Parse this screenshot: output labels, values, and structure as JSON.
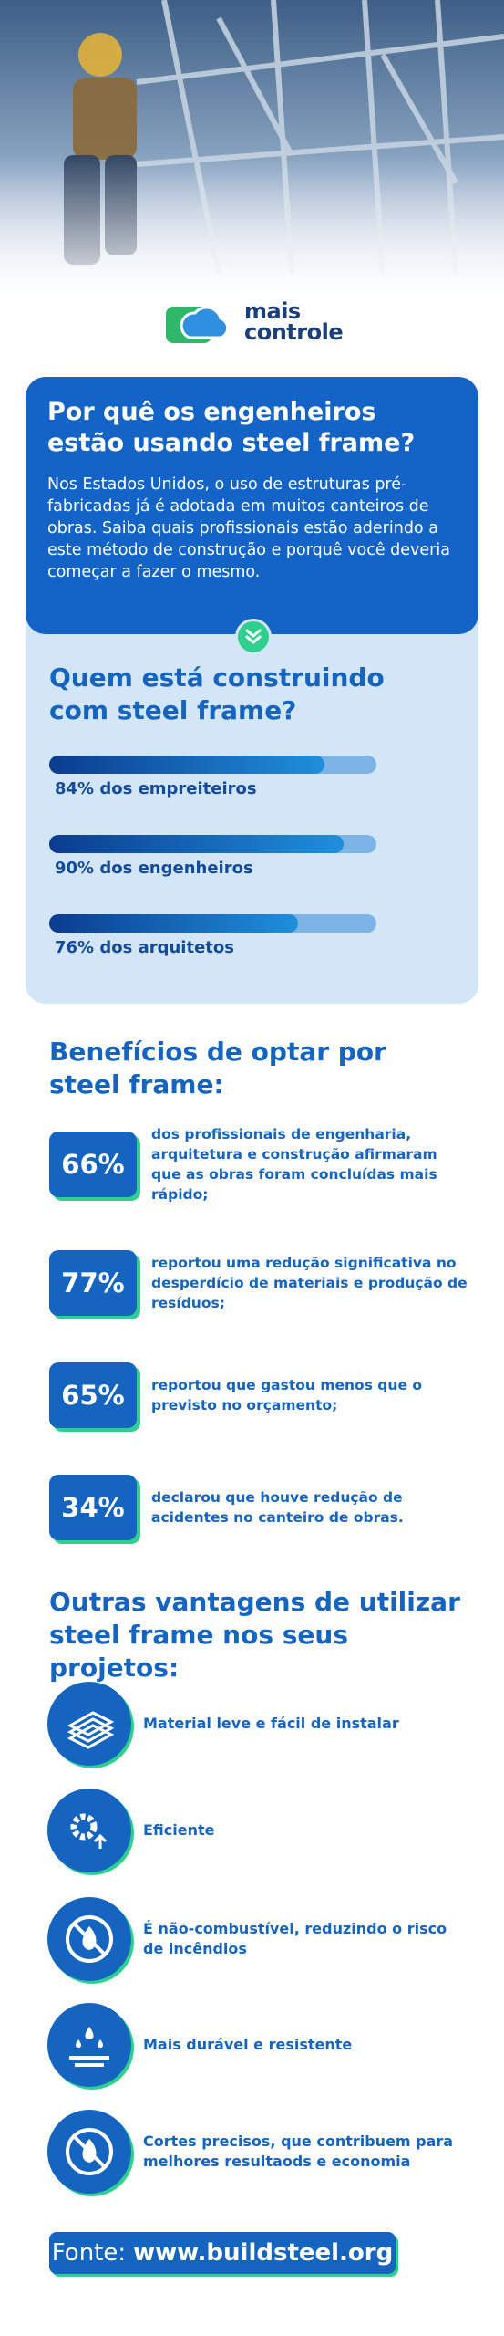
{
  "logo": {
    "line1": "mais",
    "line2": "controle"
  },
  "intro": {
    "title": "Por quê os engenheiros estão usando steel frame?",
    "text": "Nos Estados Unidos, o uso de estruturas pré-fabricadas já é adotada em muitos canteiros de obras. Saiba quais profissionais estão aderindo a este método de construção e porquê você deveria começar a fazer o mesmo."
  },
  "who": {
    "type": "bar",
    "title": "Quem está construindo com steel frame?",
    "values": [
      84,
      90,
      76
    ],
    "value_labels": [
      "84% dos empreiteiros",
      "90% dos engenheiros",
      "76% dos arquitetos"
    ],
    "xlim": [
      0,
      100
    ]
  },
  "benefits": {
    "title": "Benefícios de optar por steel frame:",
    "values": [
      66,
      77,
      65,
      34
    ],
    "value_labels": [
      "66%",
      "77%",
      "65%",
      "34%"
    ],
    "texts": [
      "dos profissionais de engenharia, arquitetura e construção afirmaram que as obras foram concluídas mais rápido;",
      "reportou uma redução significativa no desperdício de materiais e produção de resíduos;",
      "reportou que gastou menos que o previsto no orçamento;",
      "declarou que houve redução de acidentes no canteiro de obras."
    ]
  },
  "advantages": {
    "title": "Outras vantagens de utilizar steel frame nos seus projetos:",
    "items": [
      "Material leve e fácil de instalar",
      "Eficiente",
      "É não-combustível, reduzindo o risco de incêndios",
      "Mais durável e resistente",
      "Cortes precisos, que contribuem para melhores resultaods e economia"
    ]
  },
  "source": {
    "label": "Fonte:",
    "url": "www.buildsteel.org"
  }
}
